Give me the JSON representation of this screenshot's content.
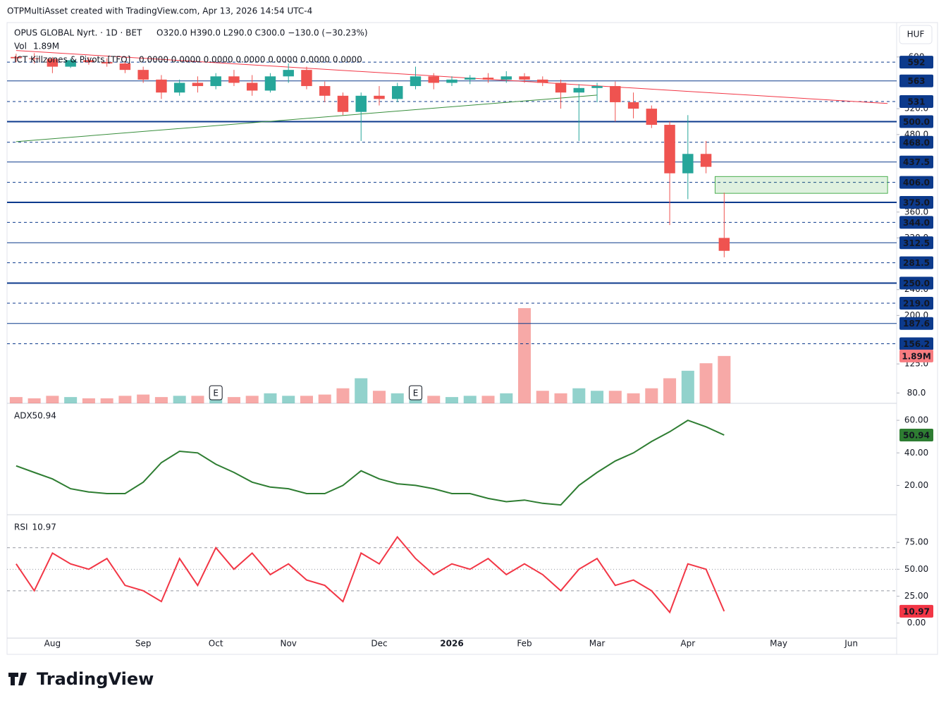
{
  "header": {
    "credit": "OTPMultiAsset created with TradingView.com, Apr 13, 2026 14:54 UTC-4",
    "logo": "TradingView"
  },
  "chart_data": [
    {
      "type": "candlestick",
      "title": "OPUS GLOBAL Nyrt. · 1D · BET",
      "ohlc_text": "O320.0 H390.0 L290.0 C300.0 −130.0 (−30.23%)",
      "currency": "HUF",
      "categories": [
        null,
        null,
        "Aug",
        null,
        null,
        null,
        null,
        "Sep",
        null,
        null,
        null,
        "Oct",
        null,
        null,
        null,
        "Nov",
        null,
        null,
        null,
        null,
        "Dec",
        null,
        null,
        null,
        "2026",
        null,
        null,
        null,
        "Feb",
        null,
        null,
        null,
        "Mar",
        null,
        null,
        null,
        null,
        "Apr",
        null,
        null,
        null,
        null,
        "May",
        null,
        null,
        null,
        "Jun",
        null,
        null
      ],
      "open": [
        600,
        598,
        597,
        585,
        595,
        592,
        590,
        580,
        565,
        545,
        560,
        555,
        570,
        560,
        548,
        570,
        580,
        555,
        540,
        515,
        540,
        535,
        555,
        570,
        560,
        565,
        568,
        565,
        570,
        565,
        560,
        545,
        552,
        555,
        530,
        520,
        495,
        420,
        450,
        320,
        null,
        null,
        null,
        null,
        null,
        null,
        null,
        null,
        null
      ],
      "high": [
        605,
        606,
        600,
        598,
        600,
        598,
        594,
        585,
        572,
        565,
        570,
        575,
        580,
        572,
        575,
        590,
        585,
        562,
        545,
        545,
        555,
        560,
        585,
        575,
        570,
        572,
        575,
        578,
        575,
        570,
        565,
        558,
        560,
        562,
        545,
        525,
        500,
        510,
        470,
        390,
        null,
        null,
        null,
        null,
        null,
        null,
        null,
        null,
        null
      ],
      "low": [
        592,
        590,
        575,
        583,
        588,
        585,
        575,
        560,
        535,
        540,
        545,
        550,
        555,
        540,
        545,
        560,
        550,
        530,
        510,
        470,
        525,
        530,
        550,
        550,
        555,
        558,
        560,
        560,
        560,
        555,
        520,
        470,
        530,
        500,
        505,
        490,
        340,
        380,
        420,
        290,
        null,
        null,
        null,
        null,
        null,
        null,
        null,
        null,
        null
      ],
      "close": [
        598,
        597,
        585,
        595,
        592,
        590,
        580,
        565,
        545,
        560,
        555,
        570,
        560,
        548,
        570,
        580,
        555,
        540,
        515,
        540,
        535,
        555,
        570,
        560,
        565,
        568,
        565,
        570,
        565,
        560,
        545,
        552,
        555,
        530,
        520,
        495,
        420,
        450,
        430,
        300,
        null,
        null,
        null,
        null,
        null,
        null,
        null,
        null,
        null
      ],
      "up_color": "#26a69a",
      "down_color": "#ef5350",
      "ylim": [
        64,
        650
      ],
      "yticks": [
        600,
        {
          "value": 520,
          "label": "520.0"
        },
        {
          "value": 480,
          "label": "480.0"
        },
        {
          "value": 360,
          "label": "360.0"
        },
        {
          "value": 320,
          "label": "320.0"
        },
        {
          "value": 240,
          "label": "240.0"
        },
        {
          "value": 200,
          "label": "200.0"
        },
        {
          "value": 125,
          "label": "125.0"
        },
        {
          "value": 80,
          "label": "80.0"
        }
      ],
      "volume": {
        "name": "Vol",
        "values": [
          250000,
          200000,
          300000,
          250000,
          200000,
          200000,
          300000,
          350000,
          250000,
          300000,
          300000,
          350000,
          250000,
          300000,
          400000,
          300000,
          300000,
          350000,
          600000,
          1000000,
          500000,
          400000,
          700000,
          300000,
          250000,
          300000,
          300000,
          400000,
          3800000,
          500000,
          400000,
          600000,
          500000,
          500000,
          400000,
          600000,
          1000000,
          1300000,
          1600000,
          1890000,
          null,
          null,
          null,
          null,
          null,
          null,
          null,
          null,
          null
        ],
        "value_labels": [
          null,
          null,
          null,
          null,
          null,
          null,
          null,
          null,
          null,
          null,
          null,
          null,
          null,
          null,
          null,
          null,
          null,
          null,
          null,
          null,
          null,
          null,
          null,
          null,
          null,
          null,
          null,
          null,
          null,
          null,
          null,
          null,
          null,
          null,
          null,
          null,
          null,
          null,
          null,
          "1.89M",
          null,
          null,
          null,
          null,
          null,
          null,
          null,
          null,
          null
        ]
      },
      "indicator": {
        "name": "ICT Killzones & Pivots [TFO]",
        "values_text": "0.0000  0.0000  0.0000  0.0000  0.0000  0.0000  0.0000"
      },
      "levels": [
        592,
        563,
        531,
        {
          "value": 500,
          "label": "500.0"
        },
        {
          "value": 468,
          "label": "468.0"
        },
        {
          "value": 437.5,
          "label": "437.5"
        },
        {
          "value": 406,
          "label": "406.0"
        },
        {
          "value": 375,
          "label": "375.0"
        },
        {
          "value": 344,
          "label": "344.0"
        },
        {
          "value": 312.5,
          "label": "312.5"
        },
        {
          "value": 281.5,
          "label": "281.5"
        },
        {
          "value": 250,
          "label": "250.0"
        },
        {
          "value": 219,
          "label": "219.0"
        },
        {
          "value": 187.6,
          "label": "187.6"
        },
        {
          "value": 156.2,
          "label": "156.2"
        }
      ],
      "level_styles": [
        "dashed",
        "solid",
        "dashed",
        "bold",
        "dashed",
        "solid",
        "dashed",
        "bold",
        "dashed",
        "solid",
        "dashed",
        "bold",
        "dashed",
        "solid",
        "dashed"
      ],
      "level_color": "#0c3a8c",
      "trendlines": [
        {
          "color": "#f23645",
          "from": [
            0,
            610
          ],
          "to": [
            48,
            528
          ]
        },
        {
          "color": "#388e3c",
          "from": [
            0,
            469
          ],
          "to": [
            32,
            541
          ]
        }
      ],
      "zone": {
        "color": "#4caf50",
        "from": 39,
        "to": 48,
        "top": 415,
        "bottom": 389
      },
      "events": [
        {
          "index": 11,
          "label": "E"
        },
        {
          "index": 22,
          "label": "E"
        }
      ]
    },
    {
      "type": "line",
      "name": "ADX",
      "color": "#2e7d32",
      "values": [
        32,
        28,
        24,
        18,
        16,
        15,
        15,
        22,
        34,
        41,
        40,
        33,
        28,
        22,
        19,
        18,
        15,
        15,
        20,
        29,
        24,
        21,
        20,
        18,
        15,
        15,
        12,
        10,
        11,
        9,
        8,
        20,
        28,
        35,
        40,
        47,
        53,
        60,
        56,
        50.94,
        null,
        null,
        null,
        null,
        null,
        null,
        null,
        null,
        null
      ],
      "ylim": [
        2,
        70
      ],
      "yticks": [
        {
          "value": 60,
          "label": "60.00"
        },
        {
          "value": 40,
          "label": "40.00"
        },
        {
          "value": 20,
          "label": "20.00"
        }
      ]
    },
    {
      "type": "line",
      "name": "RSI",
      "color": "#f23645",
      "values": [
        55,
        30,
        65,
        55,
        50,
        60,
        35,
        30,
        20,
        60,
        35,
        70,
        50,
        65,
        45,
        55,
        40,
        35,
        20,
        65,
        55,
        80,
        60,
        45,
        55,
        50,
        60,
        45,
        55,
        45,
        30,
        50,
        60,
        35,
        40,
        30,
        10,
        55,
        50,
        10.97,
        null,
        null,
        null,
        null,
        null,
        null,
        null,
        null,
        null
      ],
      "ylim": [
        -14,
        100
      ],
      "yticks": [
        {
          "value": 75,
          "label": "75.00"
        },
        {
          "value": 50,
          "label": "50.00"
        },
        {
          "value": 25,
          "label": "25.00"
        },
        {
          "value": 0,
          "label": "0.00"
        }
      ],
      "bands": [
        70,
        50,
        30
      ]
    }
  ]
}
